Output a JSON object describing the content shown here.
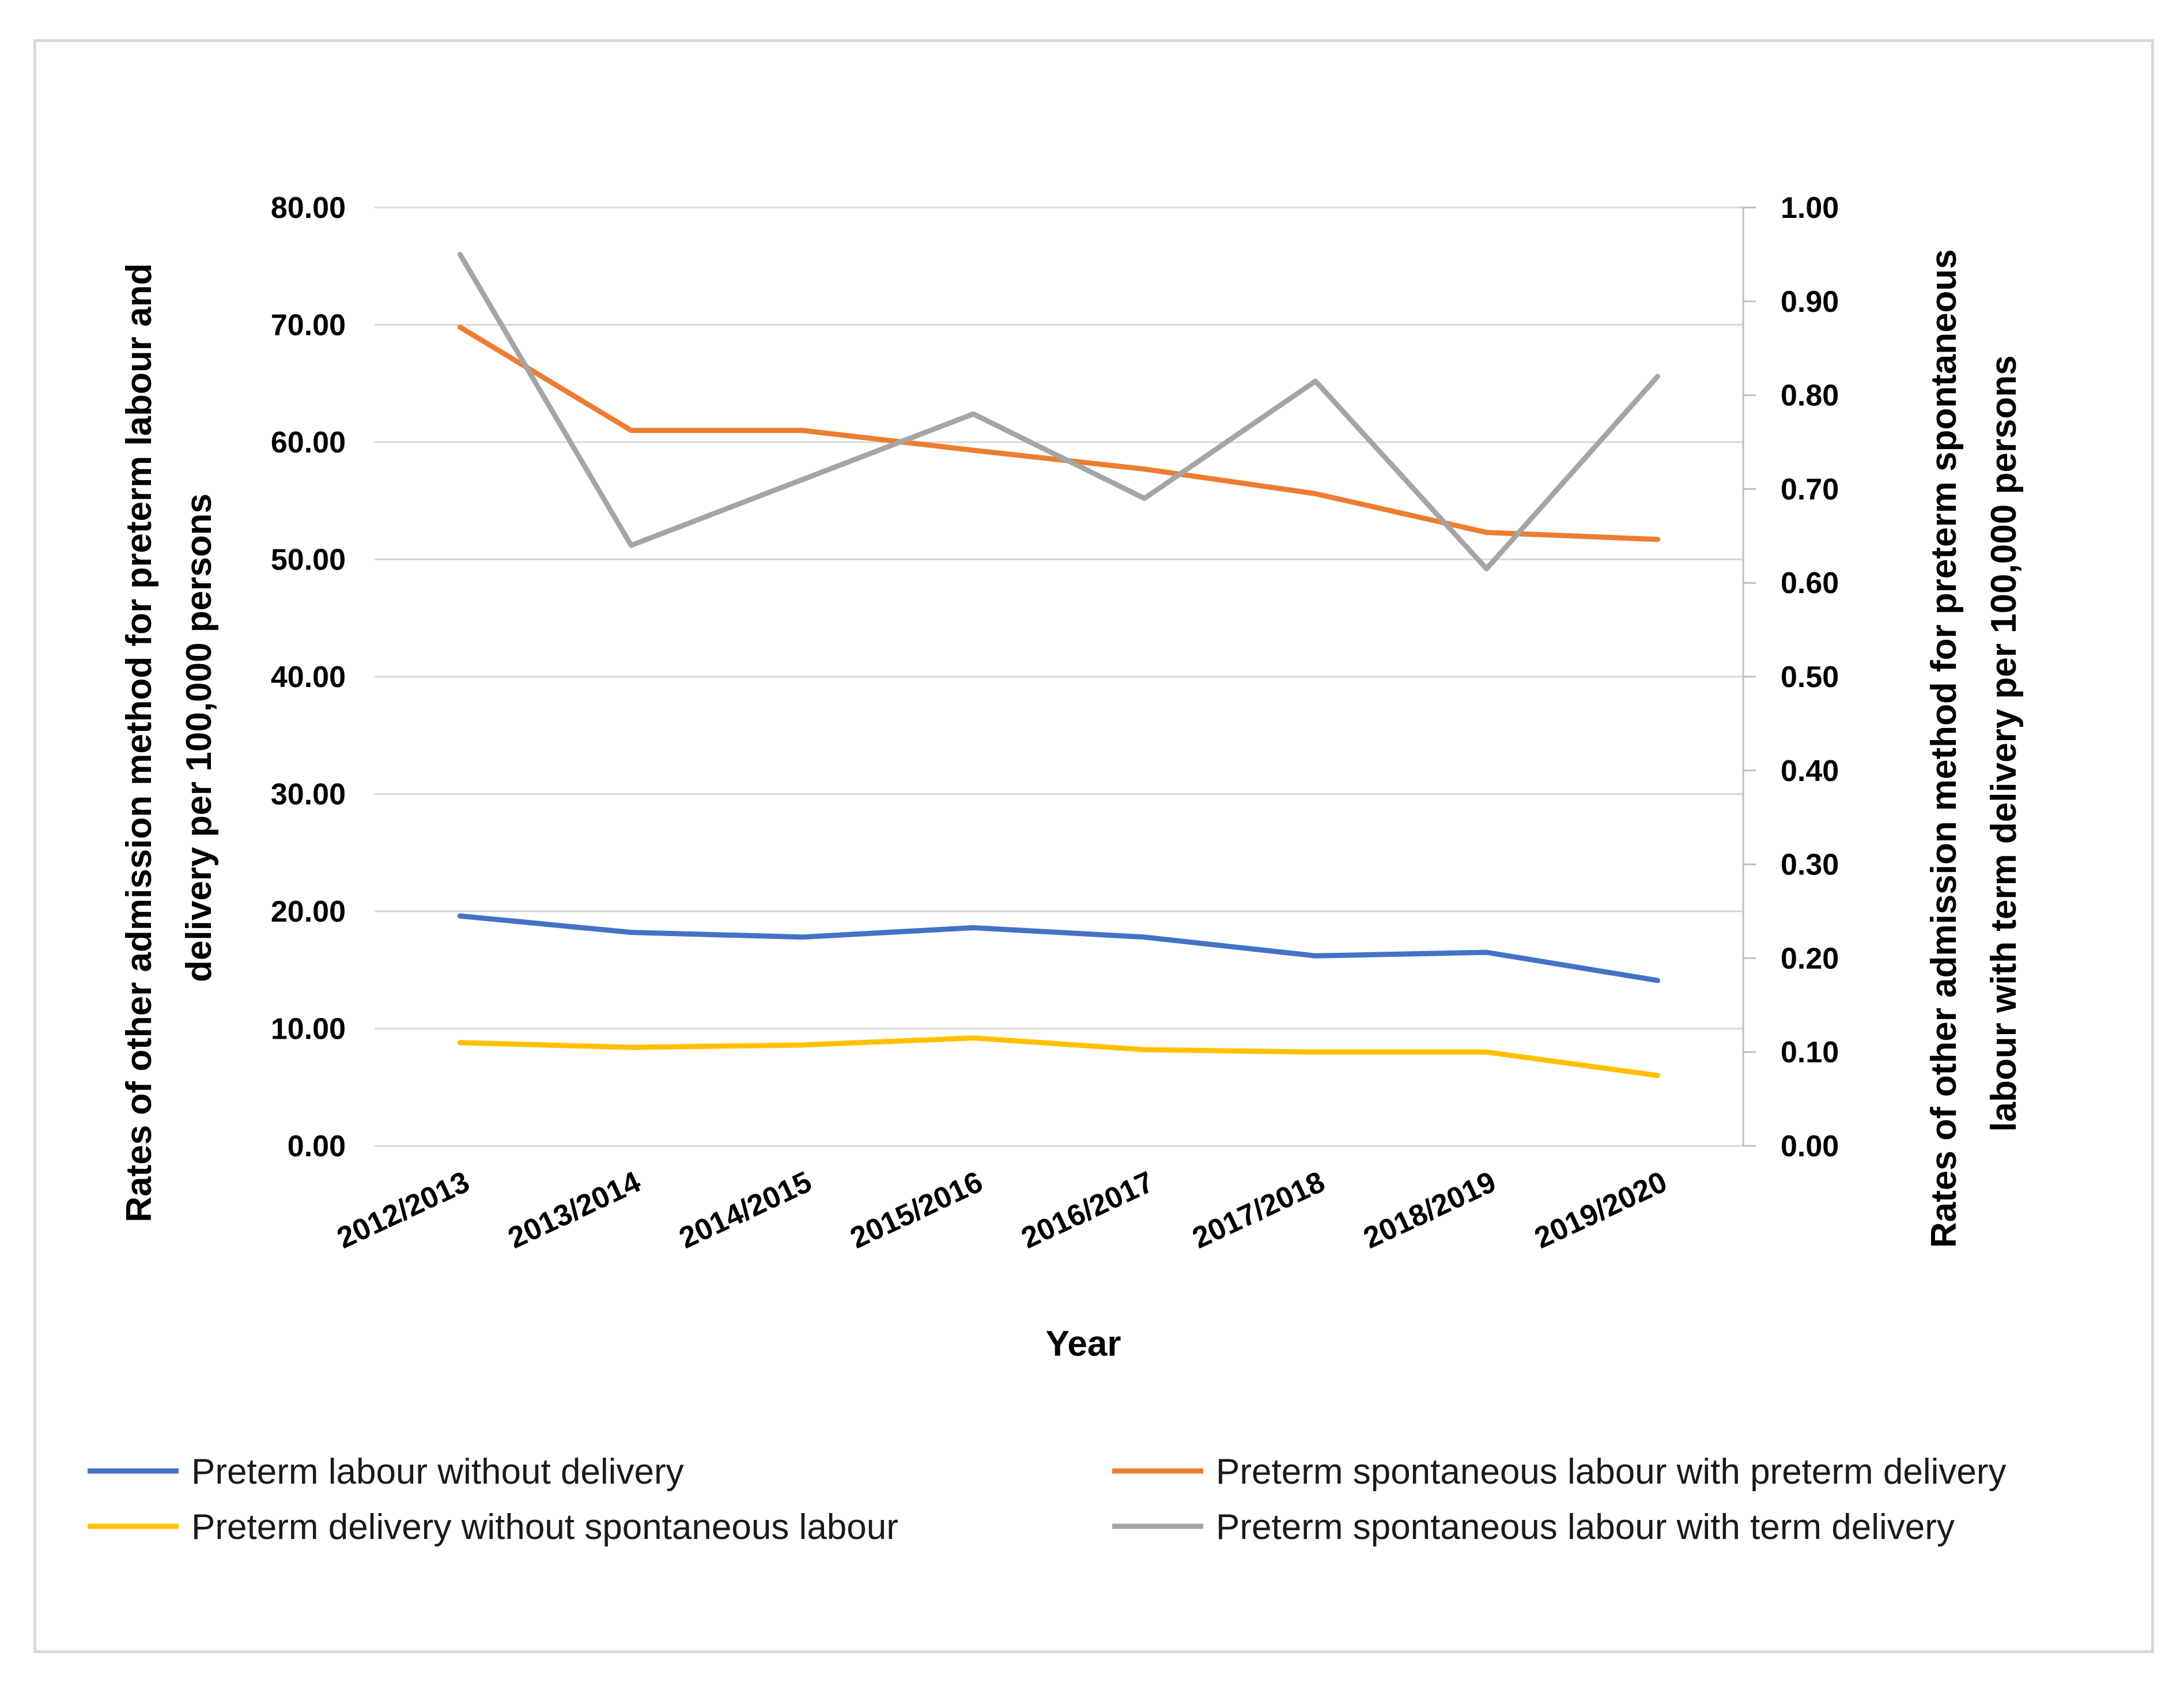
{
  "chart_data": {
    "type": "line",
    "categories": [
      "2012/2013",
      "2013/2014",
      "2014/2015",
      "2015/2016",
      "2016/2017",
      "2017/2018",
      "2018/2019",
      "2019/2020"
    ],
    "xlabel": "Year",
    "ylabel_left": "Rates of other admission method for preterm labour and delivery per 100,000 persons",
    "ylabel_left_lines": [
      "Rates of other admission method for preterm labour and",
      "delivery per 100,000 persons"
    ],
    "ylabel_right": "Rates of other admission method for preterm spontaneous labour with term delivery per 100,000 persons",
    "ylabel_right_lines": [
      "Rates of other admission method for preterm spontaneous",
      "labour with term delivery per 100,000 persons"
    ],
    "ylim_left": [
      0,
      80
    ],
    "yticks_left": [
      "0.00",
      "10.00",
      "20.00",
      "30.00",
      "40.00",
      "50.00",
      "60.00",
      "70.00",
      "80.00"
    ],
    "ylim_right": [
      0,
      1
    ],
    "yticks_right": [
      "0.00",
      "0.10",
      "0.20",
      "0.30",
      "0.40",
      "0.50",
      "0.60",
      "0.70",
      "0.80",
      "0.90",
      "1.00"
    ],
    "grid": true,
    "legend_position": "bottom",
    "series": [
      {
        "name": "Preterm labour without delivery",
        "axis": "left",
        "color": "#4472C4",
        "values": [
          19.6,
          18.2,
          17.8,
          18.6,
          17.8,
          16.2,
          16.5,
          14.1
        ]
      },
      {
        "name": "Preterm spontaneous labour with preterm delivery",
        "axis": "left",
        "color": "#ED7D31",
        "values": [
          69.8,
          61.0,
          61.0,
          59.3,
          57.7,
          55.6,
          52.3,
          51.7
        ]
      },
      {
        "name": "Preterm delivery without spontaneous labour",
        "axis": "left",
        "color": "#FFC000",
        "values": [
          8.8,
          8.4,
          8.6,
          9.2,
          8.2,
          8.0,
          8.0,
          6.0
        ]
      },
      {
        "name": "Preterm spontaneous labour with term delivery",
        "axis": "right",
        "color": "#A5A5A5",
        "values": [
          0.95,
          0.64,
          0.71,
          0.78,
          0.69,
          0.815,
          0.615,
          0.82
        ]
      }
    ]
  }
}
